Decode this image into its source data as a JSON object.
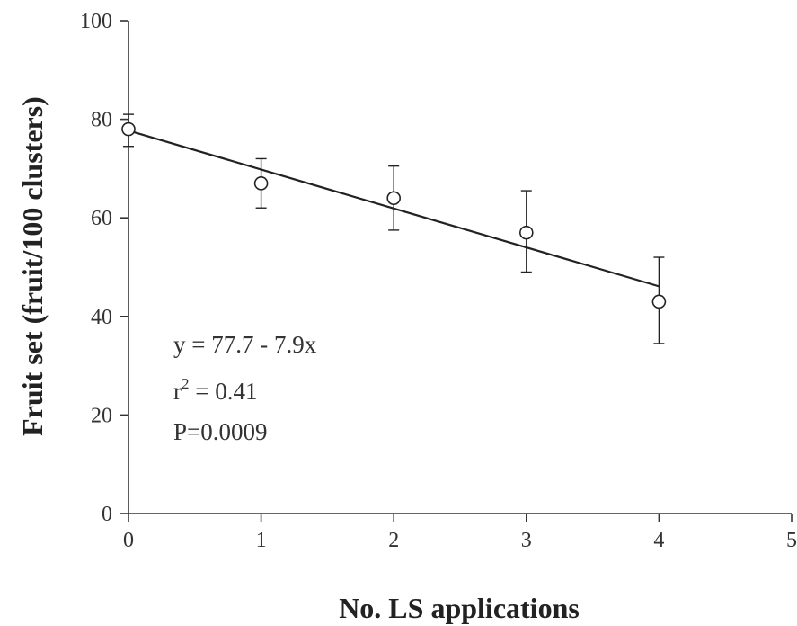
{
  "chart_data": {
    "type": "scatter",
    "title": "",
    "xlabel": "No. LS applications",
    "ylabel": "Fruit set (fruit/100 clusters)",
    "xlim": [
      0,
      5
    ],
    "ylim": [
      0,
      100
    ],
    "x_ticks": [
      0,
      1,
      2,
      3,
      4,
      5
    ],
    "y_ticks": [
      0,
      20,
      40,
      60,
      80,
      100
    ],
    "grid": false,
    "legend": "none",
    "series": [
      {
        "x": [
          0,
          1,
          2,
          3,
          4
        ],
        "y": [
          78,
          67,
          64,
          57,
          43
        ],
        "error_upper": [
          81,
          72,
          70.5,
          65.5,
          52
        ],
        "error_lower": [
          74.5,
          62,
          57.5,
          49,
          34.5
        ],
        "marker": "open-circle",
        "color": "#222222"
      }
    ],
    "fit_line": {
      "intercept": 77.7,
      "slope": -7.9,
      "x_range": [
        0,
        4
      ]
    },
    "annotations": {
      "equation": "y = 77.7 - 7.9x",
      "r_squared_prefix": "r",
      "r_squared_exponent": "2",
      "r_squared_value": " = 0.41",
      "p_value": "P=0.0009"
    }
  }
}
